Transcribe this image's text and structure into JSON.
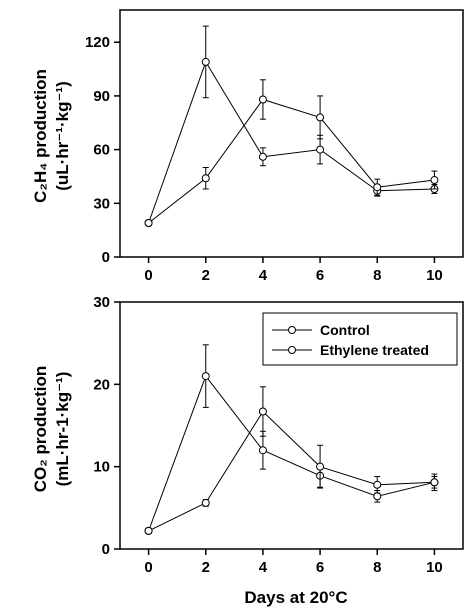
{
  "chart_data": [
    {
      "type": "line",
      "panel": "top",
      "ylabel_main": "C₂H₄ production",
      "ylabel_unit": "(uL·hr⁻¹·kg⁻¹)",
      "xlabel": "",
      "x": [
        0,
        2,
        4,
        6,
        8,
        10
      ],
      "x_ticks": [
        "0",
        "2",
        "4",
        "6",
        "8",
        "10"
      ],
      "xlim": [
        -1,
        11
      ],
      "ylim": [
        0,
        138
      ],
      "y_ticks": [
        "0",
        "30",
        "60",
        "90",
        "120"
      ],
      "grid": false,
      "series": [
        {
          "name": "Control",
          "values": [
            19,
            109,
            56,
            60,
            37,
            38
          ],
          "errors": [
            1.5,
            20,
            5,
            8,
            3,
            2.5
          ],
          "marker": "open-circle"
        },
        {
          "name": "Ethylene treated",
          "values": [
            19,
            44,
            88,
            78,
            39,
            43
          ],
          "errors": [
            1.5,
            6,
            11,
            12,
            4.5,
            5
          ],
          "marker": "open-circle"
        }
      ]
    },
    {
      "type": "line",
      "panel": "bottom",
      "ylabel_main": "CO₂ production",
      "ylabel_unit": "(mL·hr-1·kg⁻¹)",
      "xlabel": "Days at 20°C",
      "x": [
        0,
        2,
        4,
        6,
        8,
        10
      ],
      "x_ticks": [
        "0",
        "2",
        "4",
        "6",
        "8",
        "10"
      ],
      "xlim": [
        -1,
        11
      ],
      "ylim": [
        0,
        30
      ],
      "y_ticks": [
        "0",
        "10",
        "20",
        "30"
      ],
      "grid": false,
      "legend_position": "top-right",
      "legend": [
        "Control",
        "Ethylene treated"
      ],
      "series": [
        {
          "name": "Control",
          "values": [
            2.2,
            21,
            12,
            8.9,
            6.4,
            8.1
          ],
          "errors": [
            0.3,
            3.8,
            2.3,
            1.4,
            0.7,
            0.7
          ],
          "marker": "open-circle"
        },
        {
          "name": "Ethylene treated",
          "values": [
            2.2,
            5.6,
            16.7,
            10,
            7.8,
            8.1
          ],
          "errors": [
            0.3,
            0.4,
            3,
            2.6,
            1,
            1
          ],
          "marker": "open-circle"
        }
      ]
    }
  ]
}
